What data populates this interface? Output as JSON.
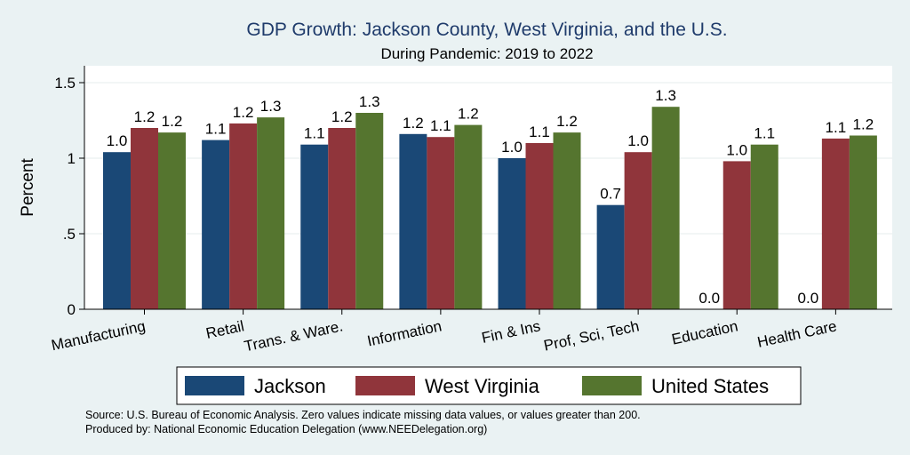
{
  "title": "GDP Growth: Jackson County, West Virginia, and the U.S.",
  "subtitle": "During Pandemic: 2019 to 2022",
  "colors": {
    "background": "#eaf2f3",
    "plot_background": "#ffffff",
    "title": "#1f3b6b",
    "gridline": "#e6ecee",
    "jackson": "#1a4876",
    "west_virginia": "#90353b",
    "united_states": "#55752f"
  },
  "chart_data": {
    "type": "bar",
    "title": "GDP Growth: Jackson County, West Virginia, and the U.S.",
    "subtitle": "During Pandemic: 2019 to 2022",
    "xlabel": "",
    "ylabel": "Percent",
    "ylim": [
      0,
      1.6
    ],
    "yticks": [
      0,
      0.5,
      1,
      1.5
    ],
    "ytick_labels": [
      "0",
      ".5",
      "1",
      "1.5"
    ],
    "grid": true,
    "legend_position": "bottom",
    "categories": [
      "Manufacturing",
      "Retail",
      "Trans. & Ware.",
      "Information",
      "Fin & Ins",
      "Prof, Sci, Tech",
      "Education",
      "Health Care"
    ],
    "series": [
      {
        "name": "Jackson",
        "values": [
          1.04,
          1.12,
          1.09,
          1.16,
          1.0,
          0.69,
          0,
          0
        ],
        "labels": [
          "1.0",
          "1.1",
          "1.1",
          "1.2",
          "1.0",
          "0.7",
          "0.0",
          "0.0"
        ]
      },
      {
        "name": "West Virginia",
        "values": [
          1.2,
          1.23,
          1.2,
          1.14,
          1.1,
          1.04,
          0.98,
          1.13
        ],
        "labels": [
          "1.2",
          "1.2",
          "1.2",
          "1.1",
          "1.1",
          "1.0",
          "1.0",
          "1.1"
        ]
      },
      {
        "name": "United States",
        "values": [
          1.17,
          1.27,
          1.3,
          1.22,
          1.17,
          1.34,
          1.09,
          1.15
        ],
        "labels": [
          "1.2",
          "1.3",
          "1.3",
          "1.2",
          "1.2",
          "1.3",
          "1.1",
          "1.2"
        ]
      }
    ]
  },
  "footnote": {
    "source": "Source: U.S. Bureau of Economic Analysis. Zero values indicate missing data values, or values greater than 200.",
    "produced_by": "Produced by: National Economic Education Delegation (www.NEEDelegation.org)"
  }
}
